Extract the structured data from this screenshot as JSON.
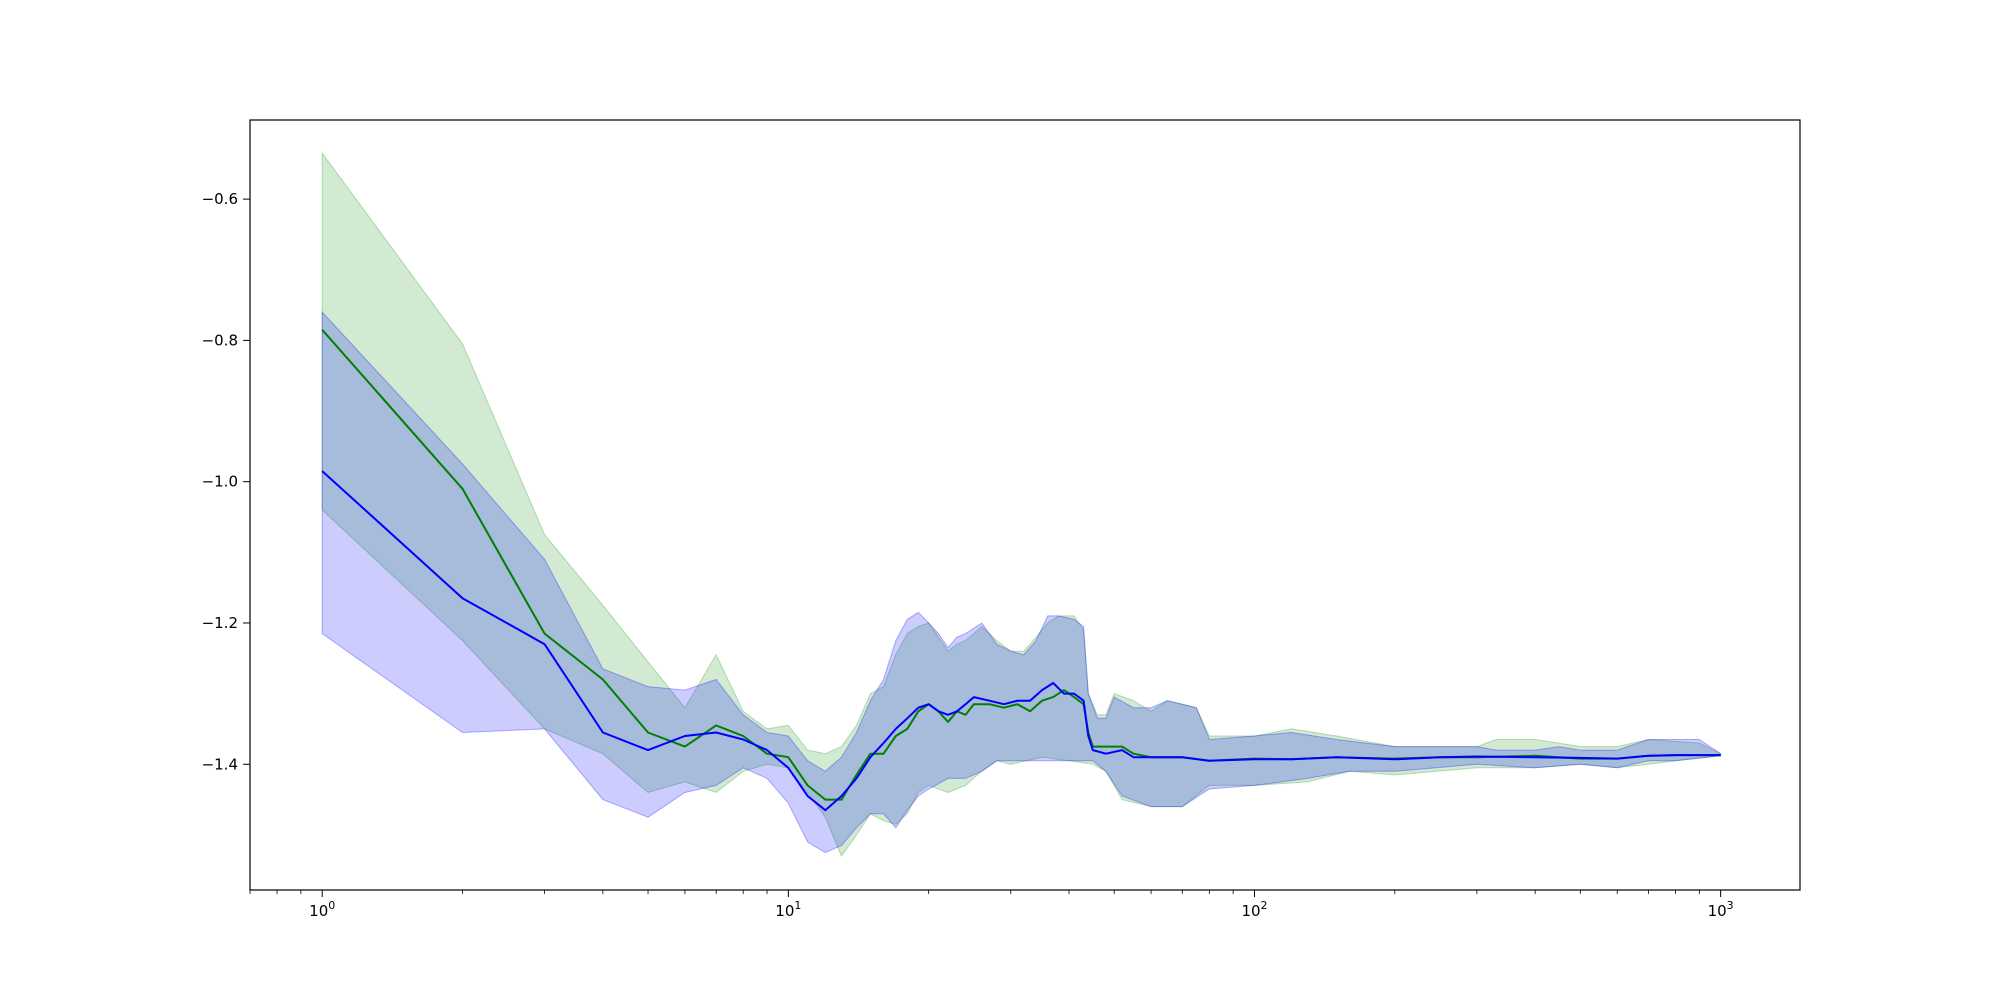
{
  "chart_data": {
    "type": "line",
    "title": "",
    "xlabel": "",
    "ylabel": "",
    "xscale": "log",
    "xlim": [
      0.7,
      1480
    ],
    "ylim": [
      -1.578,
      -0.488
    ],
    "grid": false,
    "legend": "none",
    "x_ticks": [
      {
        "value": 1,
        "base": "10",
        "exp": "0"
      },
      {
        "value": 10,
        "base": "10",
        "exp": "1"
      },
      {
        "value": 100,
        "base": "10",
        "exp": "2"
      },
      {
        "value": 1000,
        "base": "10",
        "exp": "3"
      }
    ],
    "y_ticks": [
      {
        "value": -0.6,
        "label": "−0.6"
      },
      {
        "value": -0.8,
        "label": "−0.8"
      },
      {
        "value": -1.0,
        "label": "−1.0"
      },
      {
        "value": -1.2,
        "label": "−1.2"
      },
      {
        "value": -1.4,
        "label": "−1.4"
      }
    ],
    "series": [
      {
        "color": "#008000",
        "band_color": "#2ca02c",
        "band_opacity": 0.22,
        "mean": [
          [
            1,
            -0.785
          ],
          [
            2,
            -1.01
          ],
          [
            3,
            -1.215
          ],
          [
            4,
            -1.28
          ],
          [
            5,
            -1.355
          ],
          [
            6,
            -1.375
          ],
          [
            7,
            -1.345
          ],
          [
            8,
            -1.36
          ],
          [
            9,
            -1.385
          ],
          [
            10,
            -1.39
          ],
          [
            11,
            -1.43
          ],
          [
            12,
            -1.45
          ],
          [
            13,
            -1.45
          ],
          [
            14,
            -1.415
          ],
          [
            15,
            -1.385
          ],
          [
            16,
            -1.385
          ],
          [
            17,
            -1.36
          ],
          [
            18,
            -1.35
          ],
          [
            19,
            -1.325
          ],
          [
            20,
            -1.315
          ],
          [
            21,
            -1.325
          ],
          [
            22,
            -1.34
          ],
          [
            23,
            -1.325
          ],
          [
            24,
            -1.33
          ],
          [
            25,
            -1.315
          ],
          [
            27,
            -1.315
          ],
          [
            29,
            -1.32
          ],
          [
            31,
            -1.315
          ],
          [
            33,
            -1.325
          ],
          [
            35,
            -1.31
          ],
          [
            37,
            -1.305
          ],
          [
            39,
            -1.295
          ],
          [
            41,
            -1.305
          ],
          [
            43,
            -1.315
          ],
          [
            44,
            -1.355
          ],
          [
            45,
            -1.375
          ],
          [
            48,
            -1.375
          ],
          [
            52,
            -1.375
          ],
          [
            55,
            -1.385
          ],
          [
            60,
            -1.39
          ],
          [
            70,
            -1.39
          ],
          [
            80,
            -1.395
          ],
          [
            100,
            -1.392
          ],
          [
            120,
            -1.393
          ],
          [
            150,
            -1.39
          ],
          [
            200,
            -1.392
          ],
          [
            250,
            -1.39
          ],
          [
            300,
            -1.39
          ],
          [
            400,
            -1.388
          ],
          [
            500,
            -1.392
          ],
          [
            600,
            -1.392
          ],
          [
            700,
            -1.388
          ],
          [
            800,
            -1.387
          ],
          [
            1000,
            -1.387
          ]
        ],
        "lower": [
          [
            1,
            -1.04
          ],
          [
            2,
            -1.225
          ],
          [
            3,
            -1.35
          ],
          [
            4,
            -1.385
          ],
          [
            5,
            -1.44
          ],
          [
            6,
            -1.425
          ],
          [
            7,
            -1.44
          ],
          [
            8,
            -1.41
          ],
          [
            9,
            -1.4
          ],
          [
            10,
            -1.405
          ],
          [
            11,
            -1.44
          ],
          [
            12,
            -1.475
          ],
          [
            13,
            -1.53
          ],
          [
            14,
            -1.5
          ],
          [
            15,
            -1.47
          ],
          [
            16,
            -1.48
          ],
          [
            17,
            -1.485
          ],
          [
            18,
            -1.47
          ],
          [
            19,
            -1.44
          ],
          [
            20,
            -1.43
          ],
          [
            22,
            -1.44
          ],
          [
            24,
            -1.43
          ],
          [
            26,
            -1.41
          ],
          [
            28,
            -1.395
          ],
          [
            30,
            -1.4
          ],
          [
            35,
            -1.39
          ],
          [
            40,
            -1.395
          ],
          [
            45,
            -1.4
          ],
          [
            48,
            -1.41
          ],
          [
            52,
            -1.45
          ],
          [
            60,
            -1.46
          ],
          [
            70,
            -1.46
          ],
          [
            80,
            -1.43
          ],
          [
            100,
            -1.43
          ],
          [
            130,
            -1.425
          ],
          [
            160,
            -1.41
          ],
          [
            200,
            -1.415
          ],
          [
            300,
            -1.405
          ],
          [
            400,
            -1.405
          ],
          [
            500,
            -1.4
          ],
          [
            600,
            -1.405
          ],
          [
            700,
            -1.4
          ],
          [
            800,
            -1.395
          ],
          [
            1000,
            -1.388
          ]
        ],
        "upper": [
          [
            1,
            -0.535
          ],
          [
            2,
            -0.805
          ],
          [
            3,
            -1.075
          ],
          [
            4,
            -1.175
          ],
          [
            5,
            -1.255
          ],
          [
            6,
            -1.32
          ],
          [
            7,
            -1.245
          ],
          [
            8,
            -1.325
          ],
          [
            9,
            -1.35
          ],
          [
            10,
            -1.345
          ],
          [
            11,
            -1.38
          ],
          [
            12,
            -1.385
          ],
          [
            13,
            -1.375
          ],
          [
            14,
            -1.345
          ],
          [
            15,
            -1.3
          ],
          [
            16,
            -1.29
          ],
          [
            17,
            -1.245
          ],
          [
            18,
            -1.215
          ],
          [
            19,
            -1.205
          ],
          [
            20,
            -1.2
          ],
          [
            21,
            -1.22
          ],
          [
            22,
            -1.24
          ],
          [
            23,
            -1.23
          ],
          [
            24,
            -1.225
          ],
          [
            26,
            -1.205
          ],
          [
            28,
            -1.225
          ],
          [
            30,
            -1.24
          ],
          [
            32,
            -1.24
          ],
          [
            34,
            -1.22
          ],
          [
            36,
            -1.2
          ],
          [
            38,
            -1.19
          ],
          [
            41,
            -1.19
          ],
          [
            43,
            -1.21
          ],
          [
            44,
            -1.3
          ],
          [
            46,
            -1.33
          ],
          [
            48,
            -1.33
          ],
          [
            50,
            -1.3
          ],
          [
            55,
            -1.31
          ],
          [
            60,
            -1.325
          ],
          [
            65,
            -1.31
          ],
          [
            70,
            -1.315
          ],
          [
            75,
            -1.32
          ],
          [
            80,
            -1.36
          ],
          [
            100,
            -1.36
          ],
          [
            120,
            -1.35
          ],
          [
            150,
            -1.36
          ],
          [
            200,
            -1.375
          ],
          [
            300,
            -1.375
          ],
          [
            330,
            -1.365
          ],
          [
            400,
            -1.365
          ],
          [
            450,
            -1.37
          ],
          [
            500,
            -1.375
          ],
          [
            600,
            -1.375
          ],
          [
            700,
            -1.365
          ],
          [
            900,
            -1.37
          ],
          [
            1000,
            -1.385
          ]
        ]
      },
      {
        "color": "#0000ff",
        "band_color": "#0000ff",
        "band_opacity": 0.2,
        "mean": [
          [
            1,
            -0.985
          ],
          [
            2,
            -1.165
          ],
          [
            3,
            -1.23
          ],
          [
            4,
            -1.355
          ],
          [
            5,
            -1.38
          ],
          [
            6,
            -1.36
          ],
          [
            7,
            -1.355
          ],
          [
            8,
            -1.365
          ],
          [
            9,
            -1.38
          ],
          [
            10,
            -1.405
          ],
          [
            11,
            -1.445
          ],
          [
            12,
            -1.465
          ],
          [
            13,
            -1.445
          ],
          [
            14,
            -1.42
          ],
          [
            15,
            -1.39
          ],
          [
            16,
            -1.37
          ],
          [
            17,
            -1.35
          ],
          [
            18,
            -1.335
          ],
          [
            19,
            -1.32
          ],
          [
            20,
            -1.315
          ],
          [
            21,
            -1.325
          ],
          [
            22,
            -1.33
          ],
          [
            23,
            -1.325
          ],
          [
            24,
            -1.315
          ],
          [
            25,
            -1.305
          ],
          [
            27,
            -1.31
          ],
          [
            29,
            -1.315
          ],
          [
            31,
            -1.31
          ],
          [
            33,
            -1.31
          ],
          [
            35,
            -1.295
          ],
          [
            37,
            -1.285
          ],
          [
            39,
            -1.3
          ],
          [
            41,
            -1.3
          ],
          [
            43,
            -1.31
          ],
          [
            44,
            -1.36
          ],
          [
            45,
            -1.38
          ],
          [
            48,
            -1.385
          ],
          [
            52,
            -1.38
          ],
          [
            55,
            -1.39
          ],
          [
            60,
            -1.39
          ],
          [
            70,
            -1.39
          ],
          [
            80,
            -1.395
          ],
          [
            100,
            -1.393
          ],
          [
            120,
            -1.393
          ],
          [
            150,
            -1.39
          ],
          [
            200,
            -1.393
          ],
          [
            250,
            -1.39
          ],
          [
            300,
            -1.389
          ],
          [
            400,
            -1.39
          ],
          [
            500,
            -1.391
          ],
          [
            600,
            -1.392
          ],
          [
            700,
            -1.388
          ],
          [
            800,
            -1.387
          ],
          [
            1000,
            -1.387
          ]
        ],
        "lower": [
          [
            1,
            -1.215
          ],
          [
            2,
            -1.355
          ],
          [
            3,
            -1.35
          ],
          [
            4,
            -1.45
          ],
          [
            5,
            -1.475
          ],
          [
            6,
            -1.44
          ],
          [
            7,
            -1.43
          ],
          [
            8,
            -1.405
          ],
          [
            9,
            -1.42
          ],
          [
            10,
            -1.455
          ],
          [
            11,
            -1.51
          ],
          [
            12,
            -1.525
          ],
          [
            13,
            -1.515
          ],
          [
            14,
            -1.49
          ],
          [
            15,
            -1.47
          ],
          [
            16,
            -1.47
          ],
          [
            17,
            -1.49
          ],
          [
            18,
            -1.465
          ],
          [
            19,
            -1.445
          ],
          [
            20,
            -1.435
          ],
          [
            22,
            -1.42
          ],
          [
            24,
            -1.42
          ],
          [
            26,
            -1.41
          ],
          [
            28,
            -1.395
          ],
          [
            30,
            -1.395
          ],
          [
            35,
            -1.395
          ],
          [
            40,
            -1.395
          ],
          [
            45,
            -1.395
          ],
          [
            48,
            -1.41
          ],
          [
            52,
            -1.445
          ],
          [
            60,
            -1.46
          ],
          [
            70,
            -1.46
          ],
          [
            80,
            -1.435
          ],
          [
            100,
            -1.43
          ],
          [
            130,
            -1.42
          ],
          [
            160,
            -1.41
          ],
          [
            200,
            -1.41
          ],
          [
            300,
            -1.4
          ],
          [
            400,
            -1.405
          ],
          [
            500,
            -1.4
          ],
          [
            600,
            -1.405
          ],
          [
            700,
            -1.395
          ],
          [
            800,
            -1.395
          ],
          [
            1000,
            -1.388
          ]
        ],
        "upper": [
          [
            1,
            -0.76
          ],
          [
            2,
            -0.975
          ],
          [
            3,
            -1.11
          ],
          [
            4,
            -1.265
          ],
          [
            5,
            -1.29
          ],
          [
            6,
            -1.295
          ],
          [
            7,
            -1.28
          ],
          [
            8,
            -1.33
          ],
          [
            9,
            -1.355
          ],
          [
            10,
            -1.36
          ],
          [
            11,
            -1.395
          ],
          [
            12,
            -1.41
          ],
          [
            13,
            -1.39
          ],
          [
            14,
            -1.355
          ],
          [
            15,
            -1.31
          ],
          [
            16,
            -1.28
          ],
          [
            17,
            -1.225
          ],
          [
            18,
            -1.195
          ],
          [
            19,
            -1.185
          ],
          [
            20,
            -1.2
          ],
          [
            21,
            -1.215
          ],
          [
            22,
            -1.235
          ],
          [
            23,
            -1.22
          ],
          [
            24,
            -1.215
          ],
          [
            26,
            -1.2
          ],
          [
            28,
            -1.23
          ],
          [
            30,
            -1.24
          ],
          [
            32,
            -1.245
          ],
          [
            34,
            -1.225
          ],
          [
            36,
            -1.19
          ],
          [
            38,
            -1.19
          ],
          [
            41,
            -1.195
          ],
          [
            43,
            -1.205
          ],
          [
            44,
            -1.3
          ],
          [
            46,
            -1.335
          ],
          [
            48,
            -1.335
          ],
          [
            50,
            -1.305
          ],
          [
            55,
            -1.32
          ],
          [
            60,
            -1.32
          ],
          [
            65,
            -1.31
          ],
          [
            70,
            -1.315
          ],
          [
            75,
            -1.32
          ],
          [
            80,
            -1.365
          ],
          [
            100,
            -1.36
          ],
          [
            120,
            -1.355
          ],
          [
            150,
            -1.365
          ],
          [
            200,
            -1.375
          ],
          [
            300,
            -1.375
          ],
          [
            330,
            -1.38
          ],
          [
            400,
            -1.38
          ],
          [
            450,
            -1.375
          ],
          [
            500,
            -1.38
          ],
          [
            600,
            -1.38
          ],
          [
            700,
            -1.365
          ],
          [
            900,
            -1.365
          ],
          [
            1000,
            -1.385
          ]
        ]
      }
    ]
  }
}
